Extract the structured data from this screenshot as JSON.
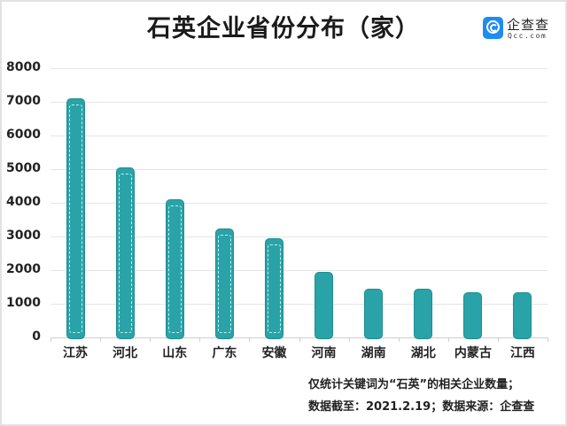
{
  "header": {
    "title": "石英企业省份分布（家）",
    "logo": {
      "name": "企查查",
      "sub": "Qcc.com",
      "color": "#1e8cf0"
    }
  },
  "colors": {
    "bar": "#2aa3a8",
    "bar_border": "#1f8d92",
    "grid": "#e6e6e6"
  },
  "footer": {
    "note1": "仅统计关键词为“石英”的相关企业数量；",
    "note2": "数据截至：2021.2.19；数据来源：企查查"
  },
  "chart_data": {
    "type": "bar",
    "title": "石英企业省份分布（家）",
    "xlabel": "",
    "ylabel": "",
    "ylim": [
      0,
      8000
    ],
    "yticks": [
      0,
      1000,
      2000,
      3000,
      4000,
      5000,
      6000,
      7000,
      8000
    ],
    "categories": [
      "江苏",
      "河北",
      "山东",
      "广东",
      "安徽",
      "河南",
      "湖南",
      "湖北",
      "内蒙古",
      "江西"
    ],
    "values": [
      7100,
      5050,
      4100,
      3250,
      2950,
      1950,
      1450,
      1440,
      1340,
      1330
    ],
    "grid": true,
    "legend": null
  }
}
